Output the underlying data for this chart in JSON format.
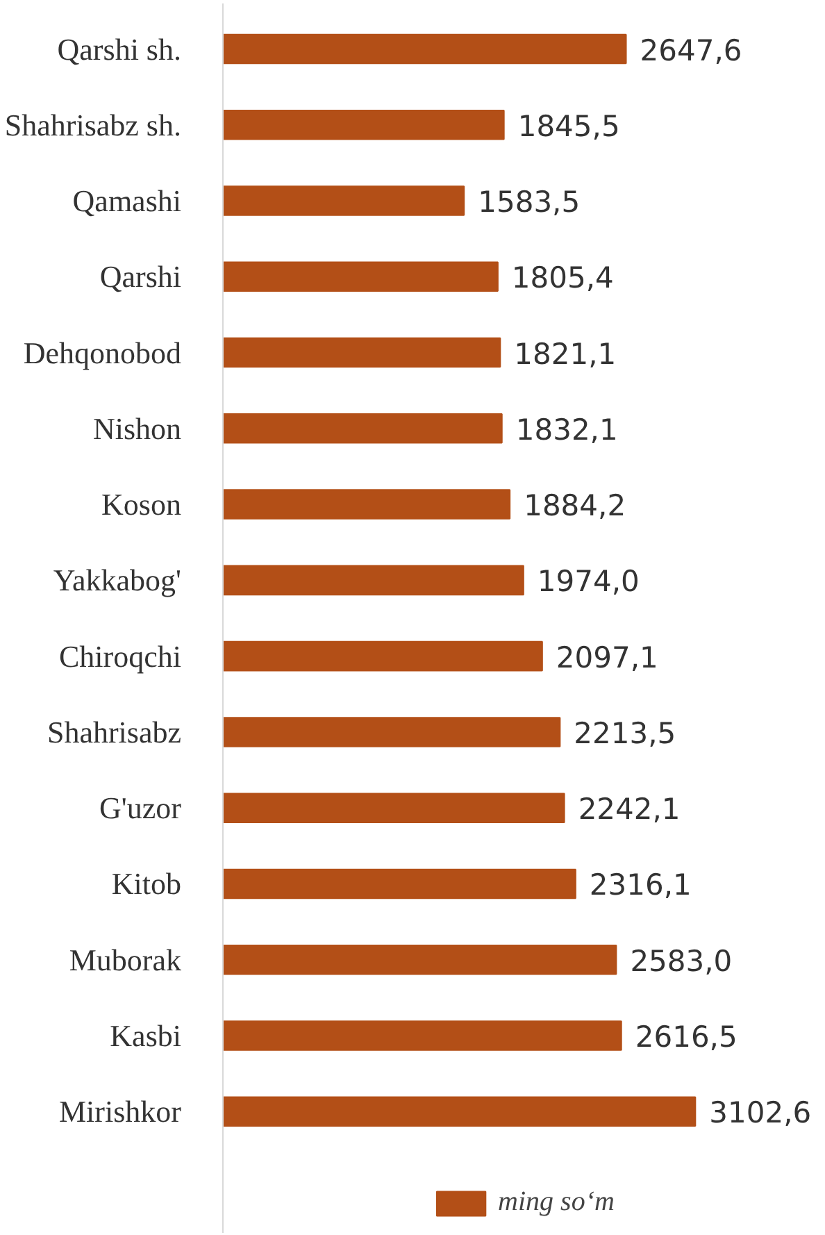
{
  "chart_data": {
    "type": "bar",
    "orientation": "horizontal",
    "categories": [
      "Qarshi sh.",
      "Shahrisabz sh.",
      "Qamashi",
      "Qarshi",
      "Dehqonobod",
      "Nishon",
      "Koson",
      "Yakkabog'",
      "Chiroqchi",
      "Shahrisabz",
      "G'uzor",
      "Kitob",
      "Muborak",
      "Kasbi",
      "Mirishkor"
    ],
    "series": [
      {
        "name": "ming so‘m",
        "color": "#b34f17",
        "values": [
          2647.6,
          1845.5,
          1583.5,
          1805.4,
          1821.1,
          1832.1,
          1884.2,
          1974.0,
          2097.1,
          2213.5,
          2242.1,
          2316.1,
          2583.0,
          2616.5,
          3102.6
        ],
        "value_labels": [
          "2647,6",
          "1845,5",
          "1583,5",
          "1805,4",
          "1821,1",
          "1832,1",
          "1884,2",
          "1974,0",
          "2097,1",
          "2213,5",
          "2242,1",
          "2316,1",
          "2583,0",
          "2616,5",
          "3102,6"
        ]
      }
    ],
    "tick_labels": "y",
    "legend": "bottom"
  }
}
